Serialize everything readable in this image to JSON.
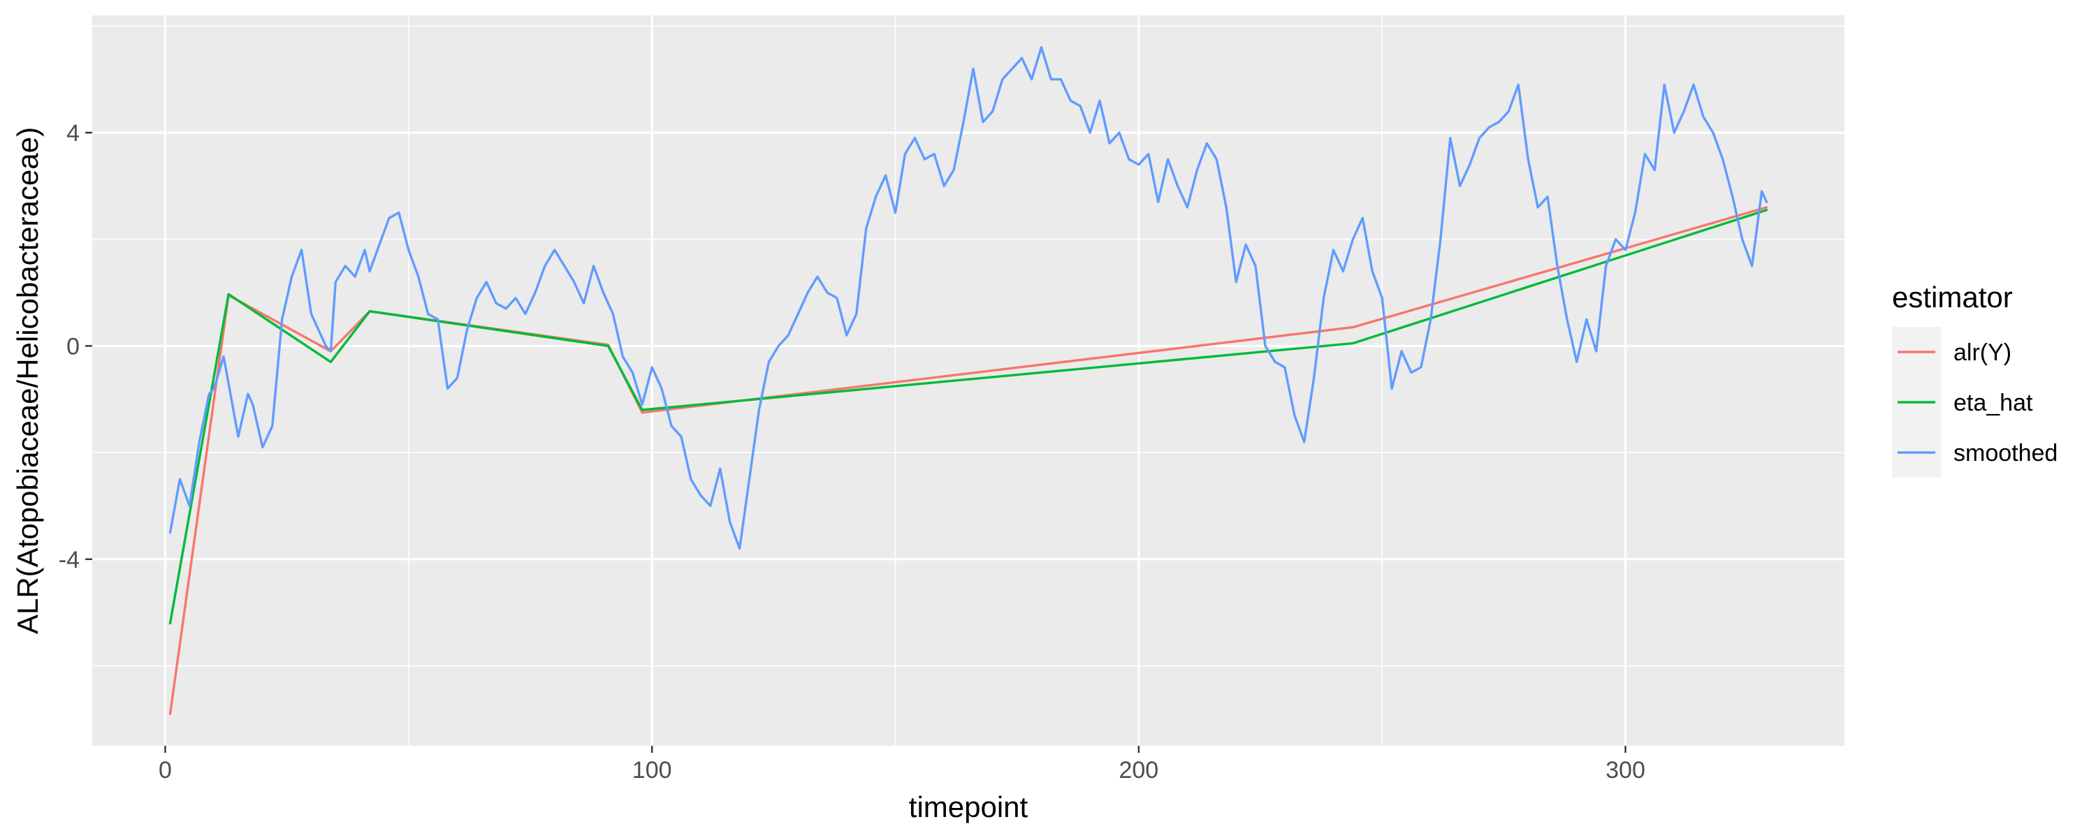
{
  "chart_data": {
    "type": "line",
    "title": "",
    "xlabel": "timepoint",
    "ylabel": "ALR(Atopobiaceae/Helicobacteraceae)",
    "xlim": [
      -15,
      345
    ],
    "ylim": [
      -7.5,
      6.2
    ],
    "x_ticks": [
      0,
      100,
      200,
      300
    ],
    "y_ticks": [
      -4,
      0,
      4
    ],
    "grid": true,
    "legend_title": "estimator",
    "legend_position": "right",
    "series": [
      {
        "name": "alr(Y)",
        "color": "#F8766D",
        "x": [
          1,
          13,
          34,
          42,
          91,
          98,
          244,
          329
        ],
        "y": [
          -6.9,
          0.95,
          -0.1,
          0.65,
          0.02,
          -1.25,
          0.35,
          2.6
        ]
      },
      {
        "name": "eta_hat",
        "color": "#00BA38",
        "x": [
          1,
          13,
          34,
          42,
          91,
          98,
          244,
          329
        ],
        "y": [
          -5.2,
          0.97,
          -0.3,
          0.65,
          0.0,
          -1.2,
          0.05,
          2.55
        ]
      },
      {
        "name": "smoothed",
        "color": "#619CFF",
        "x": [
          1,
          3,
          5,
          7,
          9,
          10,
          12,
          14,
          15,
          17,
          18,
          20,
          22,
          24,
          26,
          28,
          30,
          32,
          33,
          34,
          35,
          37,
          39,
          41,
          42,
          44,
          46,
          48,
          50,
          52,
          54,
          56,
          58,
          60,
          62,
          64,
          66,
          68,
          70,
          72,
          74,
          76,
          78,
          80,
          82,
          84,
          86,
          88,
          90,
          92,
          94,
          96,
          98,
          100,
          102,
          104,
          106,
          108,
          110,
          112,
          114,
          116,
          118,
          120,
          122,
          124,
          126,
          128,
          130,
          132,
          134,
          136,
          138,
          140,
          142,
          144,
          146,
          148,
          150,
          152,
          154,
          156,
          158,
          160,
          162,
          164,
          166,
          168,
          170,
          172,
          174,
          176,
          178,
          180,
          182,
          184,
          186,
          188,
          190,
          192,
          194,
          196,
          198,
          200,
          202,
          204,
          206,
          208,
          210,
          212,
          214,
          216,
          218,
          220,
          222,
          224,
          226,
          228,
          230,
          232,
          234,
          236,
          238,
          240,
          242,
          244,
          246,
          248,
          250,
          252,
          254,
          256,
          258,
          260,
          262,
          264,
          266,
          268,
          270,
          272,
          274,
          276,
          278,
          280,
          282,
          284,
          286,
          288,
          290,
          292,
          294,
          296,
          298,
          300,
          302,
          304,
          306,
          308,
          310,
          312,
          314,
          316,
          318,
          320,
          322,
          324,
          326,
          328,
          329
        ],
        "y": [
          -3.5,
          -2.5,
          -3.0,
          -1.8,
          -0.9,
          -0.8,
          -0.2,
          -1.2,
          -1.7,
          -0.9,
          -1.1,
          -1.9,
          -1.5,
          0.5,
          1.3,
          1.8,
          0.6,
          0.2,
          0.0,
          -0.1,
          1.2,
          1.5,
          1.3,
          1.8,
          1.4,
          1.9,
          2.4,
          2.5,
          1.8,
          1.3,
          0.6,
          0.5,
          -0.8,
          -0.6,
          0.3,
          0.9,
          1.2,
          0.8,
          0.7,
          0.9,
          0.6,
          1.0,
          1.5,
          1.8,
          1.5,
          1.2,
          0.8,
          1.5,
          1.0,
          0.6,
          -0.2,
          -0.5,
          -1.1,
          -0.4,
          -0.8,
          -1.5,
          -1.7,
          -2.5,
          -2.8,
          -3.0,
          -2.3,
          -3.3,
          -3.8,
          -2.5,
          -1.2,
          -0.3,
          0.0,
          0.2,
          0.6,
          1.0,
          1.3,
          1.0,
          0.9,
          0.2,
          0.6,
          2.2,
          2.8,
          3.2,
          2.5,
          3.6,
          3.9,
          3.5,
          3.6,
          3.0,
          3.3,
          4.2,
          5.2,
          4.2,
          4.4,
          5.0,
          5.2,
          5.4,
          5.0,
          5.6,
          5.0,
          5.0,
          4.6,
          4.5,
          4.0,
          4.6,
          3.8,
          4.0,
          3.5,
          3.4,
          3.6,
          2.7,
          3.5,
          3.0,
          2.6,
          3.3,
          3.8,
          3.5,
          2.6,
          1.2,
          1.9,
          1.5,
          0.0,
          -0.3,
          -0.4,
          -1.3,
          -1.8,
          -0.6,
          0.9,
          1.8,
          1.4,
          2.0,
          2.4,
          1.4,
          0.9,
          -0.8,
          -0.1,
          -0.5,
          -0.4,
          0.5,
          2.0,
          3.9,
          3.0,
          3.4,
          3.9,
          4.1,
          4.2,
          4.4,
          4.9,
          3.5,
          2.6,
          2.8,
          1.5,
          0.5,
          -0.3,
          0.5,
          -0.1,
          1.5,
          2.0,
          1.8,
          2.5,
          3.6,
          3.3,
          4.9,
          4.0,
          4.4,
          4.9,
          4.3,
          4.0,
          3.5,
          2.8,
          2.0,
          1.5,
          2.9,
          2.7
        ]
      }
    ]
  }
}
